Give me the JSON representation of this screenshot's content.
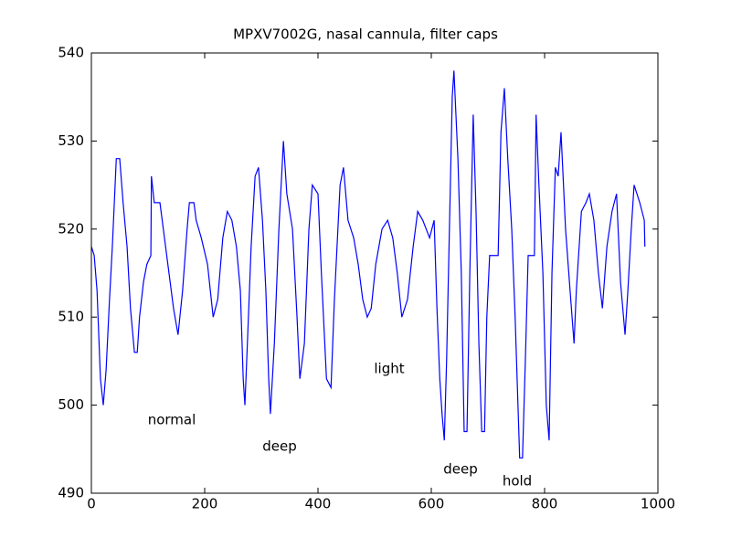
{
  "chart_data": {
    "type": "line",
    "title": "MPXV7002G, nasal cannula, filter caps",
    "x": [
      0,
      5,
      10,
      16,
      21,
      26,
      32,
      37,
      44,
      50,
      56,
      63,
      69,
      76,
      81,
      85,
      92,
      98,
      105,
      106,
      111,
      121,
      129,
      137,
      145,
      153,
      161,
      169,
      173,
      181,
      185,
      194,
      205,
      215,
      223,
      232,
      240,
      248,
      256,
      263,
      268,
      271,
      276,
      282,
      289,
      295,
      302,
      308,
      313,
      316,
      323,
      331,
      339,
      345,
      355,
      363,
      368,
      376,
      384,
      390,
      400,
      406,
      415,
      423,
      429,
      439,
      445,
      453,
      463,
      471,
      479,
      487,
      494,
      502,
      513,
      523,
      532,
      540,
      548,
      558,
      568,
      576,
      585,
      597,
      605,
      610,
      615,
      619,
      623,
      627,
      632,
      637,
      640,
      647,
      653,
      658,
      663,
      668,
      674,
      679,
      684,
      689,
      694,
      698,
      703,
      718,
      723,
      729,
      735,
      742,
      748,
      753,
      756,
      761,
      766,
      771,
      782,
      785,
      790,
      797,
      803,
      808,
      813,
      819,
      824,
      829,
      837,
      845,
      852,
      856,
      865,
      873,
      879,
      887,
      895,
      902,
      910,
      919,
      927,
      934,
      942,
      947,
      953,
      958,
      968,
      976,
      977
    ],
    "series": [
      {
        "color": "#0000ff",
        "values": [
          518,
          517,
          513,
          503,
          500,
          504,
          512,
          518,
          528,
          528,
          523,
          518,
          511,
          506,
          506,
          510,
          514,
          516,
          517,
          526,
          523,
          523,
          519,
          515,
          511,
          508,
          513,
          520,
          523,
          523,
          521,
          519,
          516,
          510,
          512,
          519,
          522,
          521,
          518,
          513,
          503,
          500,
          508,
          518,
          526,
          527,
          521,
          513,
          503,
          499,
          507,
          520,
          530,
          524,
          520,
          510,
          503,
          507,
          520,
          525,
          524,
          515,
          503,
          502,
          512,
          525,
          527,
          521,
          519,
          516,
          512,
          510,
          511,
          516,
          520,
          521,
          519,
          515,
          510,
          512,
          518,
          522,
          521,
          519,
          521,
          511,
          503,
          499,
          496,
          505,
          520,
          535,
          538,
          528,
          515,
          497,
          497,
          515,
          533,
          522,
          507,
          497,
          497,
          510,
          517,
          517,
          531,
          536,
          528,
          520,
          510,
          500,
          494,
          494,
          505,
          517,
          517,
          533,
          525,
          515,
          500,
          496,
          515,
          527,
          526,
          531,
          520,
          513,
          507,
          513,
          522,
          523,
          524,
          521,
          515,
          511,
          518,
          522,
          524,
          514,
          508,
          513,
          520,
          525,
          523,
          521,
          518
        ]
      }
    ],
    "annotations": [
      "normal",
      "deep",
      "light",
      "deep",
      "hold"
    ],
    "xlim": [
      0,
      1000
    ],
    "xticks": [
      0,
      200,
      400,
      600,
      800,
      1000
    ],
    "ylim": [
      490,
      540
    ],
    "yticks": [
      490,
      500,
      510,
      520,
      530,
      540
    ]
  }
}
